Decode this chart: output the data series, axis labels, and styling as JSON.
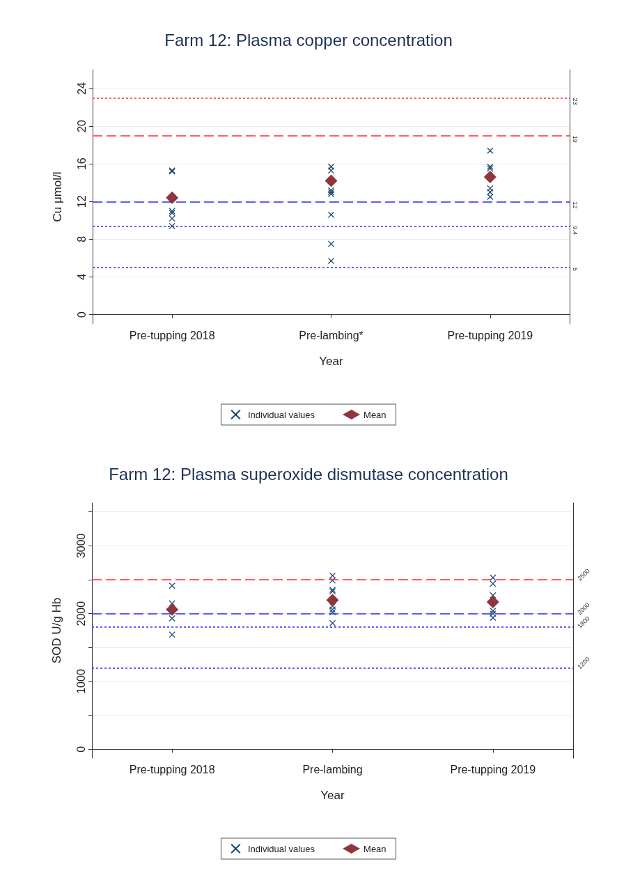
{
  "chart_data": [
    {
      "type": "scatter",
      "title": "Farm 12: Plasma copper concentration",
      "xlabel": "Year",
      "ylabel": "Cu μmol/l",
      "categories": [
        "Pre-tupping 2018",
        "Pre-lambing*",
        "Pre-tupping 2019"
      ],
      "ylim": [
        -1,
        26
      ],
      "yticks": [
        0,
        4,
        8,
        12,
        16,
        20,
        24
      ],
      "grid": "y",
      "legend": "bottom",
      "series": [
        {
          "name": "Individual values",
          "color": "#1a476f",
          "marker": "cross",
          "x": [
            "Pre-tupping 2018",
            "Pre-tupping 2018",
            "Pre-tupping 2018",
            "Pre-tupping 2018",
            "Pre-tupping 2018",
            "Pre-tupping 2018",
            "Pre-tupping 2018",
            "Pre-lambing*",
            "Pre-lambing*",
            "Pre-lambing*",
            "Pre-lambing*",
            "Pre-lambing*",
            "Pre-lambing*",
            "Pre-lambing*",
            "Pre-lambing*",
            "Pre-tupping 2019",
            "Pre-tupping 2019",
            "Pre-tupping 2019",
            "Pre-tupping 2019",
            "Pre-tupping 2019",
            "Pre-tupping 2019"
          ],
          "values": [
            15.2,
            15.3,
            null,
            11.0,
            10.8,
            10.2,
            9.4,
            15.7,
            15.3,
            13.2,
            13.0,
            12.8,
            10.6,
            7.5,
            5.7,
            17.4,
            15.7,
            15.5,
            13.4,
            13.0,
            12.5
          ]
        },
        {
          "name": "Mean",
          "color": "#90353b",
          "marker": "diamond",
          "x": [
            "Pre-tupping 2018",
            "Pre-lambing*",
            "Pre-tupping 2019"
          ],
          "values": [
            12.4,
            14.2,
            14.6
          ]
        }
      ],
      "ref_lines": [
        {
          "axis": "y",
          "value": 23,
          "label": "23",
          "color": "#ff2a2a",
          "line_style": "dotted"
        },
        {
          "axis": "y",
          "value": 19,
          "label": "19",
          "color": "#ff2a2a",
          "line_style": "dashed"
        },
        {
          "axis": "y",
          "value": 12,
          "label": "12",
          "color": "#2a2aff",
          "line_style": "dashed"
        },
        {
          "axis": "y",
          "value": 9.4,
          "label": "9.4",
          "color": "#2a2aff",
          "line_style": "dotted"
        },
        {
          "axis": "y",
          "value": 5,
          "label": "5",
          "color": "#2a2aff",
          "line_style": "dotted"
        }
      ]
    },
    {
      "type": "scatter",
      "title": "Farm 12: Plasma superoxide dismutase concentration",
      "xlabel": "Year",
      "ylabel": "SOD U/g Hb",
      "categories": [
        "Pre-tupping 2018",
        "Pre-lambing",
        "Pre-tupping 2019"
      ],
      "ylim": [
        -130,
        3630
      ],
      "yticks": [
        0,
        {
          "value": 500,
          "label": null
        },
        1000,
        {
          "value": 1500,
          "label": null
        },
        2000,
        {
          "value": 2500,
          "label": null
        },
        3000,
        {
          "value": 3500,
          "label": null
        }
      ],
      "grid": "y",
      "legend": "bottom",
      "series": [
        {
          "name": "Individual values",
          "color": "#1a476f",
          "marker": "cross",
          "x": [
            "Pre-tupping 2018",
            "Pre-tupping 2018",
            "Pre-tupping 2018",
            "Pre-tupping 2018",
            "Pre-tupping 2018",
            "Pre-lambing",
            "Pre-lambing",
            "Pre-lambing",
            "Pre-lambing",
            "Pre-lambing",
            "Pre-lambing",
            "Pre-lambing",
            "Pre-lambing",
            "Pre-tupping 2019",
            "Pre-tupping 2019",
            "Pre-tupping 2019",
            "Pre-tupping 2019",
            "Pre-tupping 2019",
            "Pre-tupping 2019"
          ],
          "values": [
            2410,
            2150,
            null,
            1930,
            1690,
            2560,
            2490,
            2350,
            2330,
            2110,
            2060,
            2020,
            1860,
            2530,
            2440,
            2270,
            2040,
            2000,
            1940
          ]
        },
        {
          "name": "Mean",
          "color": "#90353b",
          "marker": "diamond",
          "x": [
            "Pre-tupping 2018",
            "Pre-lambing",
            "Pre-tupping 2019"
          ],
          "values": [
            2060,
            2200,
            2170
          ]
        }
      ],
      "ref_lines": [
        {
          "axis": "y",
          "value": 2500,
          "label": "2500",
          "color": "#ff2a2a",
          "line_style": "dashed"
        },
        {
          "axis": "y",
          "value": 2000,
          "label": "2000",
          "color": "#2a2aff",
          "line_style": "dashed"
        },
        {
          "axis": "y",
          "value": 1800,
          "label": "1800",
          "color": "#2a2aff",
          "line_style": "dotted"
        },
        {
          "axis": "y",
          "value": 1200,
          "label": "1200",
          "color": "#2a2aff",
          "line_style": "dotted"
        }
      ]
    }
  ]
}
